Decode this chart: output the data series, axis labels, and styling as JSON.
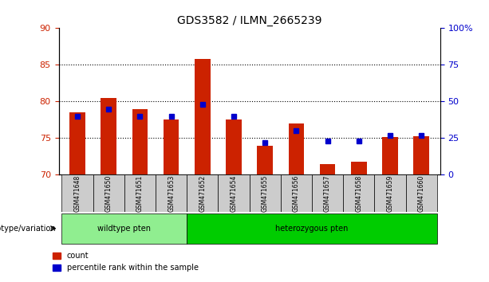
{
  "title": "GDS3582 / ILMN_2665239",
  "categories": [
    "GSM471648",
    "GSM471650",
    "GSM471651",
    "GSM471653",
    "GSM471652",
    "GSM471654",
    "GSM471655",
    "GSM471656",
    "GSM471657",
    "GSM471658",
    "GSM471659",
    "GSM471660"
  ],
  "red_values": [
    78.5,
    80.5,
    79.0,
    77.5,
    85.8,
    77.5,
    74.0,
    77.0,
    71.5,
    71.8,
    75.2,
    75.3
  ],
  "blue_values": [
    40,
    45,
    40,
    40,
    48,
    40,
    22,
    30,
    23,
    23,
    27,
    27
  ],
  "ylim_left": [
    70,
    90
  ],
  "ylim_right": [
    0,
    100
  ],
  "yticks_left": [
    70,
    75,
    80,
    85,
    90
  ],
  "yticks_right": [
    0,
    25,
    50,
    75,
    100
  ],
  "ytick_labels_right": [
    "0",
    "25",
    "50",
    "75",
    "100%"
  ],
  "groups": [
    {
      "label": "wildtype pten",
      "start": 0,
      "end": 4,
      "color": "#90EE90"
    },
    {
      "label": "heterozygous pten",
      "start": 4,
      "end": 12,
      "color": "#00CC00"
    }
  ],
  "group_label": "genotype/variation",
  "legend_count_label": "count",
  "legend_percentile_label": "percentile rank within the sample",
  "bar_color": "#CC2200",
  "marker_color": "#0000CC",
  "bg_color": "#CCCCCC",
  "plot_bg": "#FFFFFF",
  "grid_color": "#000000",
  "left_tick_color": "#CC2200",
  "right_tick_color": "#0000CC"
}
